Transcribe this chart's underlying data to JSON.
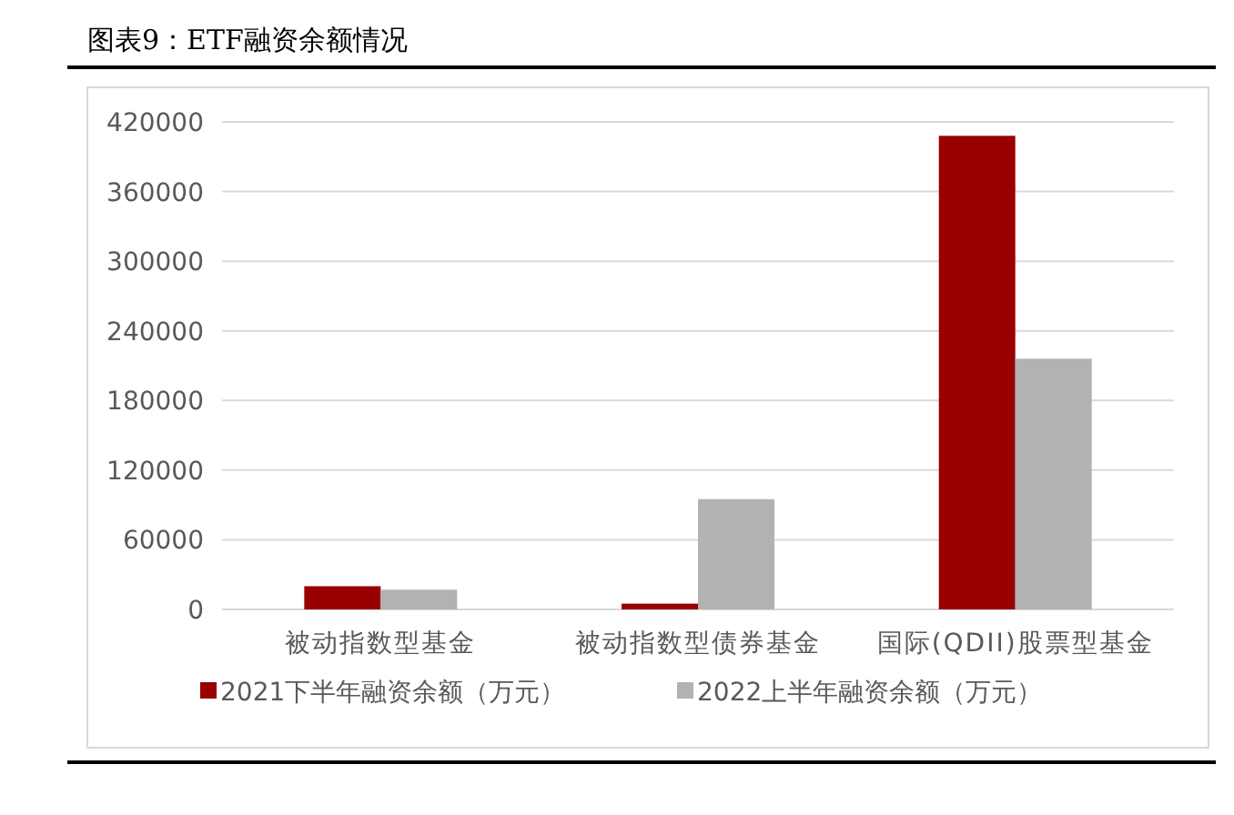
{
  "chart_data": {
    "type": "bar",
    "title": "图表9：ETF融资余额情况",
    "categories": [
      "被动指数型基金",
      "被动指数型债券基金",
      "国际(QDII)股票型基金"
    ],
    "series": [
      {
        "name": "2021下半年融资余额（万元）",
        "color": "#990000",
        "values": [
          20000,
          5000,
          408000
        ]
      },
      {
        "name": "2022上半年融资余额（万元）",
        "color": "#b2b2b2",
        "values": [
          17000,
          95000,
          216000
        ]
      }
    ],
    "ylim": [
      0,
      420000
    ],
    "yticks": [
      0,
      60000,
      120000,
      180000,
      240000,
      300000,
      360000,
      420000
    ],
    "grid": "y",
    "legend": "bottom"
  }
}
